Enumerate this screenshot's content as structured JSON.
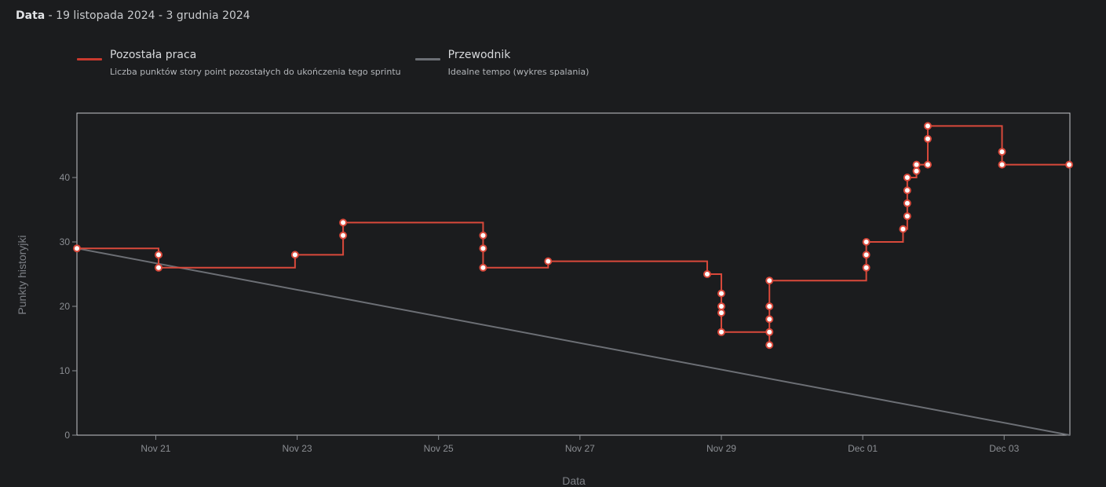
{
  "header": {
    "label": "Data",
    "range": " - 19 listopada 2024 - 3 grudnia 2024"
  },
  "legend": [
    {
      "name": "Pozostała praca",
      "desc": "Liczba punktów story point pozostałych do ukończenia tego sprintu",
      "color": "#d9493b"
    },
    {
      "name": "Przewodnik",
      "desc": "Idealne tempo (wykres spalania)",
      "color": "#6c6f75"
    }
  ],
  "chart_data": {
    "type": "line",
    "title": "",
    "xlabel": "Data",
    "ylabel": "Punkty historyjki",
    "xlim": [
      19.885,
      33.93
    ],
    "ylim": [
      0,
      50
    ],
    "x_unit": "day of November 2024",
    "grid": false,
    "legend_position": "top-left",
    "x_ticks": [
      {
        "x": 21,
        "label": "Nov 21"
      },
      {
        "x": 23,
        "label": "Nov 23"
      },
      {
        "x": 25,
        "label": "Nov 25"
      },
      {
        "x": 27,
        "label": "Nov 27"
      },
      {
        "x": 29,
        "label": "Nov 29"
      },
      {
        "x": 31,
        "label": "Dec 01"
      },
      {
        "x": 33,
        "label": "Dec 03"
      }
    ],
    "y_ticks": [
      0,
      10,
      20,
      30,
      40
    ],
    "series": [
      {
        "name": "Pozostała praca",
        "color": "#d9493b",
        "step": true,
        "points": [
          [
            19.885,
            29
          ],
          [
            21.04,
            28
          ],
          [
            21.04,
            26
          ],
          [
            22.97,
            28
          ],
          [
            23.65,
            31
          ],
          [
            23.65,
            33
          ],
          [
            25.63,
            31
          ],
          [
            25.63,
            29
          ],
          [
            25.63,
            26
          ],
          [
            26.55,
            27
          ],
          [
            28.8,
            25
          ],
          [
            29.0,
            22
          ],
          [
            29.0,
            20
          ],
          [
            29.0,
            19
          ],
          [
            29.0,
            16
          ],
          [
            29.68,
            16
          ],
          [
            29.68,
            14
          ],
          [
            29.68,
            18
          ],
          [
            29.68,
            20
          ],
          [
            29.68,
            24
          ],
          [
            31.05,
            26
          ],
          [
            31.05,
            28
          ],
          [
            31.05,
            30
          ],
          [
            31.57,
            32
          ],
          [
            31.63,
            34
          ],
          [
            31.63,
            36
          ],
          [
            31.63,
            38
          ],
          [
            31.63,
            40
          ],
          [
            31.76,
            41
          ],
          [
            31.76,
            42
          ],
          [
            31.92,
            42
          ],
          [
            31.92,
            46
          ],
          [
            31.92,
            48
          ],
          [
            32.97,
            44
          ],
          [
            32.97,
            42
          ],
          [
            33.92,
            42
          ]
        ]
      },
      {
        "name": "Przewodnik",
        "color": "#6c6f75",
        "step": false,
        "points": [
          [
            19.885,
            29
          ],
          [
            33.93,
            0
          ]
        ]
      }
    ]
  }
}
